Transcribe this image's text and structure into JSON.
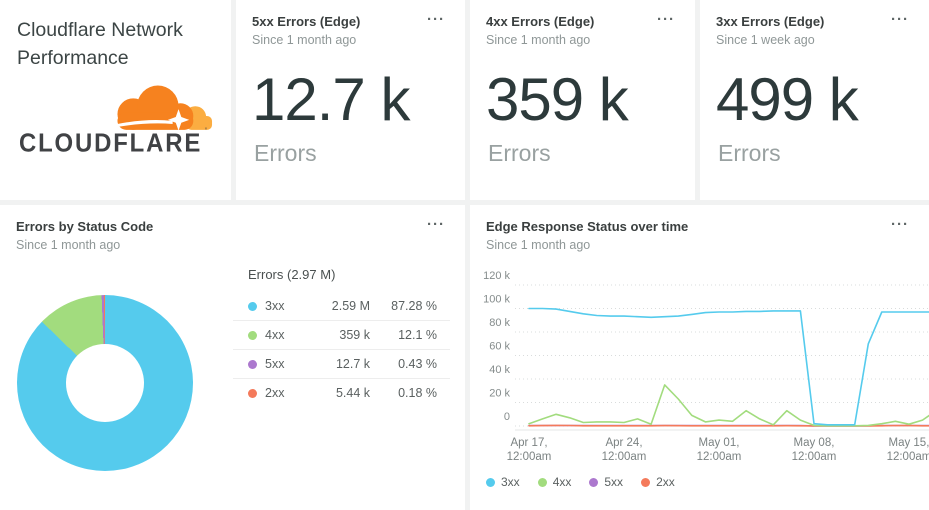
{
  "app": {
    "background": "#f1f2f2"
  },
  "menu_icon": "···",
  "title_card": {
    "heading": "Cloudflare Network Performance",
    "logo_text": "CLOUDFLARE",
    "logo_orange": "#F6821F",
    "logo_light_orange": "#FBAD41",
    "logo_text_color": "#404245"
  },
  "billboards": [
    {
      "title": "5xx Errors (Edge)",
      "subtitle": "Since 1 month ago",
      "value": "12.7 k",
      "unit": "Errors"
    },
    {
      "title": "4xx Errors (Edge)",
      "subtitle": "Since 1 month ago",
      "value": "359 k",
      "unit": "Errors"
    },
    {
      "title": "3xx Errors (Edge)",
      "subtitle": "Since 1 week ago",
      "value": "499 k",
      "unit": "Errors"
    }
  ],
  "donut_card": {
    "title": "Errors by Status Code",
    "subtitle": "Since 1 month ago",
    "legend_title": "Errors (2.97 M)"
  },
  "timeseries_card": {
    "title": "Edge Response Status over time",
    "subtitle": "Since 1 month ago"
  },
  "chart_data": [
    {
      "type": "pie",
      "title": "Errors by Status Code",
      "donut": true,
      "total_label": "Errors (2.97 M)",
      "legend_position": "right",
      "slices": [
        {
          "label": "3xx",
          "value": 2590000,
          "value_label": "2.59 M",
          "pct": 87.28,
          "pct_label": "87.28 %",
          "color": "#55CBED"
        },
        {
          "label": "4xx",
          "value": 359000,
          "value_label": "359 k",
          "pct": 12.1,
          "pct_label": "12.1 %",
          "color": "#A2DC7E"
        },
        {
          "label": "5xx",
          "value": 12700,
          "value_label": "12.7 k",
          "pct": 0.43,
          "pct_label": "0.43 %",
          "color": "#AC78CE"
        },
        {
          "label": "2xx",
          "value": 5440,
          "value_label": "5.44 k",
          "pct": 0.18,
          "pct_label": "0.18 %",
          "color": "#F47A5B"
        }
      ]
    },
    {
      "type": "line",
      "title": "Edge Response Status over time",
      "xlabel": "",
      "ylabel": "",
      "ylim": [
        0,
        120000
      ],
      "grid": "dotted",
      "legend_position": "bottom",
      "x_unit": "day",
      "x_ticks": [
        {
          "day": 0,
          "line1": "Apr 17,",
          "line2": "12:00am"
        },
        {
          "day": 7,
          "line1": "Apr 24,",
          "line2": "12:00am"
        },
        {
          "day": 14,
          "line1": "May 01,",
          "line2": "12:00am"
        },
        {
          "day": 21,
          "line1": "May 08,",
          "line2": "12:00am"
        },
        {
          "day": 28,
          "line1": "May 15,",
          "line2": "12:00am"
        }
      ],
      "y_ticks": [
        {
          "v": 120000,
          "label": "120 k"
        },
        {
          "v": 100000,
          "label": "100 k"
        },
        {
          "v": 80000,
          "label": "80 k"
        },
        {
          "v": 60000,
          "label": "60 k"
        },
        {
          "v": 40000,
          "label": "40 k"
        },
        {
          "v": 20000,
          "label": "20 k"
        },
        {
          "v": 0,
          "label": "0"
        }
      ],
      "series": [
        {
          "name": "3xx",
          "color": "#55CBED",
          "values": [
            100000,
            100000,
            99500,
            97500,
            95500,
            94000,
            93500,
            93500,
            93000,
            92500,
            93000,
            93500,
            95000,
            96500,
            97000,
            97000,
            97500,
            97500,
            98000,
            98000,
            98000,
            2000,
            1000,
            1000,
            1000,
            70000,
            97000,
            97000,
            97000,
            97000,
            97000
          ]
        },
        {
          "name": "4xx",
          "color": "#A2DC7E",
          "values": [
            2000,
            6000,
            10000,
            7000,
            3000,
            3500,
            3500,
            3000,
            6000,
            1500,
            35000,
            23000,
            9000,
            3500,
            5000,
            4000,
            13000,
            6000,
            1000,
            13000,
            5000,
            500,
            200,
            200,
            200,
            500,
            2000,
            4000,
            1500,
            5000,
            13000
          ]
        },
        {
          "name": "5xx",
          "color": "#AC78CE",
          "values": [
            400,
            420,
            400,
            410,
            400,
            400,
            410,
            400,
            400,
            420,
            450,
            430,
            400,
            400,
            410,
            400,
            420,
            400,
            400,
            430,
            400,
            100,
            80,
            80,
            80,
            200,
            400,
            420,
            400,
            400,
            420
          ]
        },
        {
          "name": "2xx",
          "color": "#F47A5B",
          "values": [
            150,
            300,
            500,
            400,
            200,
            180,
            170,
            180,
            200,
            150,
            300,
            250,
            200,
            180,
            170,
            180,
            200,
            180,
            150,
            250,
            180,
            50,
            40,
            40,
            40,
            80,
            150,
            400,
            350,
            150,
            200
          ]
        }
      ]
    }
  ]
}
